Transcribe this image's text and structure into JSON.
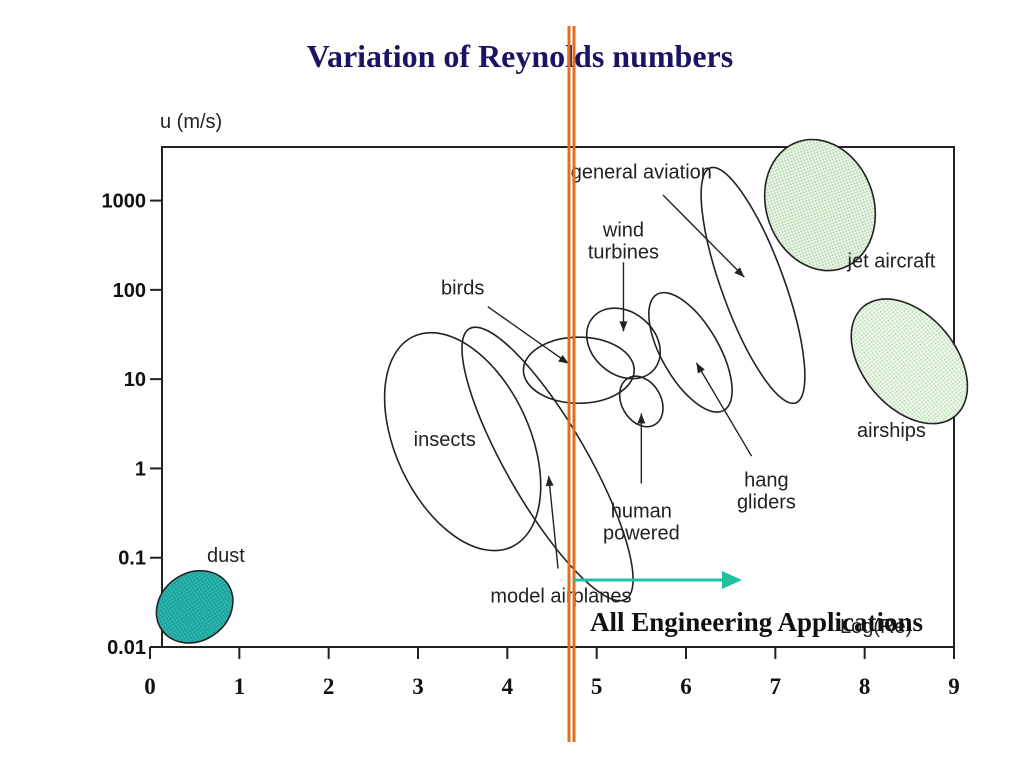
{
  "slide": {
    "title": "Variation of Reynolds numbers",
    "caption": "All Engineering Applications"
  },
  "colors": {
    "title": "#1b1464",
    "vertical_marker": "#e07020",
    "arrow": "#20c0a0",
    "dust_fill": "#1aa6a0",
    "jet_fill": "#cfe8c8",
    "airship_fill": "#d6ecd0"
  },
  "chart_data": {
    "type": "scatter",
    "title": "",
    "ylabel": "u (m/s)",
    "xlabel": "Log(Re)",
    "x_ticks": [
      "0",
      "1",
      "2",
      "3",
      "4",
      "5",
      "6",
      "7",
      "8",
      "9"
    ],
    "y_ticks": [
      "0.01",
      "0.1",
      "1",
      "10",
      "100",
      "1000"
    ],
    "xlim": [
      0,
      9
    ],
    "ylim_log10": [
      -2,
      3.6
    ],
    "y_scale": "log",
    "regions": [
      {
        "name": "dust",
        "cx": 0.5,
        "cy_log": -1.55,
        "rx": 0.45,
        "ry_log": 0.38,
        "angle": 35,
        "fill": "dust",
        "label_pos": [
          0.85,
          -1.05
        ]
      },
      {
        "name": "insects",
        "cx": 3.5,
        "cy_log": 0.3,
        "rx": 0.75,
        "ry_log": 1.3,
        "angle": 25,
        "fill": "none",
        "label_pos": [
          3.3,
          0.25
        ]
      },
      {
        "name": "model airplanes",
        "cx": 4.45,
        "cy_log": 0.05,
        "rx": 0.45,
        "ry_log": 1.75,
        "angle": 30,
        "fill": "none",
        "label_pos": [
          4.6,
          -1.5
        ]
      },
      {
        "name": "birds",
        "cx": 4.8,
        "cy_log": 1.1,
        "rx": 0.62,
        "ry_log": 0.37,
        "angle": 0,
        "fill": "none",
        "label_pos": [
          3.5,
          1.95
        ]
      },
      {
        "name": "wind turbines",
        "cx": 5.3,
        "cy_log": 1.4,
        "rx": 0.35,
        "ry_log": 0.45,
        "angle": 50,
        "fill": "none",
        "label_pos": [
          5.3,
          2.6
        ]
      },
      {
        "name": "human powered",
        "cx": 5.5,
        "cy_log": 0.75,
        "rx": 0.22,
        "ry_log": 0.3,
        "angle": 30,
        "fill": "none",
        "label_pos": [
          5.5,
          -0.55
        ]
      },
      {
        "name": "hang gliders",
        "cx": 6.05,
        "cy_log": 1.3,
        "rx": 0.32,
        "ry_log": 0.75,
        "angle": 30,
        "fill": "none",
        "label_pos": [
          6.9,
          -0.2
        ]
      },
      {
        "name": "general aviation",
        "cx": 6.75,
        "cy_log": 2.05,
        "rx": 0.35,
        "ry_log": 1.4,
        "angle": 20,
        "fill": "none",
        "label_pos": [
          5.5,
          3.25
        ]
      },
      {
        "name": "jet aircraft",
        "cx": 7.5,
        "cy_log": 2.95,
        "rx": 0.6,
        "ry_log": 0.75,
        "angle": 20,
        "fill": "jet",
        "label_pos": [
          8.3,
          2.25
        ]
      },
      {
        "name": "airships",
        "cx": 8.5,
        "cy_log": 1.2,
        "rx": 0.52,
        "ry_log": 0.8,
        "angle": 40,
        "fill": "airship",
        "label_pos": [
          8.3,
          0.35
        ]
      }
    ]
  }
}
